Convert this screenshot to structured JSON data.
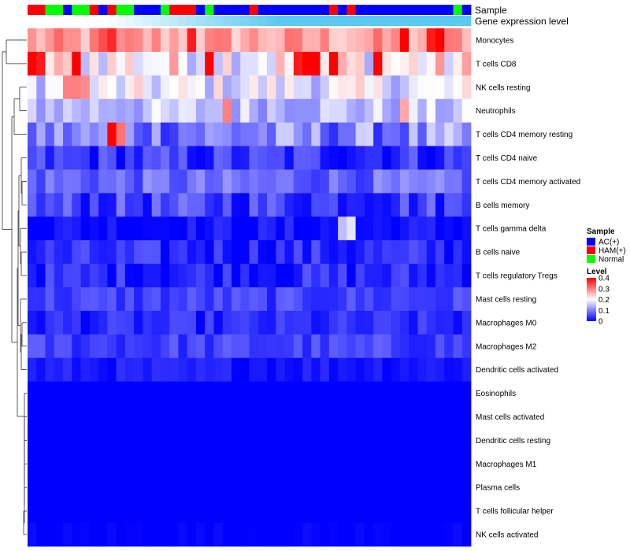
{
  "chart_data": {
    "type": "heatmap",
    "title": "",
    "annotation_labels": {
      "sample": "Sample",
      "gene_expression": "Gene expression level"
    },
    "sample_groups": [
      "HAM(+)",
      "HAM(+)",
      "Normal",
      "Normal",
      "AC(+)",
      "Normal",
      "Normal",
      "HAM(+)",
      "AC(+)",
      "HAM(+)",
      "Normal",
      "Normal",
      "AC(+)",
      "AC(+)",
      "AC(+)",
      "Normal",
      "HAM(+)",
      "HAM(+)",
      "HAM(+)",
      "AC(+)",
      "Normal",
      "AC(+)",
      "AC(+)",
      "AC(+)",
      "AC(+)",
      "HAM(+)",
      "AC(+)",
      "AC(+)",
      "AC(+)",
      "AC(+)",
      "AC(+)",
      "AC(+)",
      "AC(+)",
      "AC(+)",
      "HAM(+)",
      "AC(+)",
      "HAM(+)",
      "AC(+)",
      "AC(+)",
      "AC(+)",
      "AC(+)",
      "AC(+)",
      "AC(+)",
      "AC(+)",
      "AC(+)",
      "AC(+)",
      "AC(+)",
      "AC(+)",
      "Normal",
      "AC(+)"
    ],
    "sample_legend": {
      "title": "Sample",
      "entries": [
        {
          "label": "AC(+)",
          "color": "#0000ff"
        },
        {
          "label": "HAM(+)",
          "color": "#ff0000"
        },
        {
          "label": "Normal",
          "color": "#00ff00"
        }
      ]
    },
    "gene_expression_colors": {
      "low": "#ffffff",
      "high": "#5bc8ef"
    },
    "color_scale": {
      "title": "Level",
      "range": [
        0,
        0.4
      ],
      "ticks": [
        0.4,
        0.3,
        0.2,
        0.1,
        0
      ],
      "tick_labels": [
        "0.4",
        "0.3",
        "0.2",
        "0.1",
        "0"
      ],
      "colors": {
        "low": "#0000ff",
        "mid": "#ffffff",
        "high": "#ff0000",
        "mid_value": 0.2
      }
    },
    "rows": [
      {
        "name": "Monocytes",
        "base": 0.27,
        "spread": 0.05,
        "hot": [
          [
            8,
            0.34
          ],
          [
            9,
            0.37
          ],
          [
            18,
            0.38
          ],
          [
            42,
            0.4
          ],
          [
            45,
            0.38
          ],
          [
            46,
            0.4
          ]
        ]
      },
      {
        "name": "T cells CD8",
        "base": 0.21,
        "spread": 0.08,
        "hot": [
          [
            0,
            0.4
          ],
          [
            1,
            0.38
          ],
          [
            5,
            0.4
          ],
          [
            20,
            0.4
          ],
          [
            30,
            0.38
          ],
          [
            31,
            0.4
          ],
          [
            32,
            0.4
          ],
          [
            34,
            0.4
          ],
          [
            39,
            0.4
          ]
        ]
      },
      {
        "name": "NK cells resting",
        "base": 0.18,
        "spread": 0.06,
        "hot": [
          [
            4,
            0.3
          ],
          [
            5,
            0.3
          ],
          [
            6,
            0.29
          ]
        ]
      },
      {
        "name": "Neutrophils",
        "base": 0.15,
        "spread": 0.05,
        "hot": [
          [
            22,
            0.3
          ],
          [
            42,
            0.27
          ]
        ]
      },
      {
        "name": "T cells CD4 memory resting",
        "base": 0.1,
        "spread": 0.07,
        "hot": [
          [
            9,
            0.4
          ],
          [
            10,
            0.31
          ]
        ]
      },
      {
        "name": "T cells CD4 naive",
        "base": 0.04,
        "spread": 0.05
      },
      {
        "name": "T cells CD4 memory activated",
        "base": 0.08,
        "spread": 0.04
      },
      {
        "name": "B cells memory",
        "base": 0.05,
        "spread": 0.05
      },
      {
        "name": "T cells gamma delta",
        "base": 0.01,
        "spread": 0.03,
        "hot": [
          [
            35,
            0.15
          ],
          [
            36,
            0.18
          ]
        ]
      },
      {
        "name": "B cells naive",
        "base": 0.03,
        "spread": 0.04
      },
      {
        "name": "T cells regulatory  Tregs",
        "base": 0.03,
        "spread": 0.04
      },
      {
        "name": "Mast cells resting",
        "base": 0.05,
        "spread": 0.03
      },
      {
        "name": "Macrophages M0",
        "base": 0.03,
        "spread": 0.03
      },
      {
        "name": "Macrophages M2",
        "base": 0.05,
        "spread": 0.03
      },
      {
        "name": "Dendritic cells activated",
        "base": 0.02,
        "spread": 0.02
      },
      {
        "name": "Eosinophils",
        "base": 0.0,
        "spread": 0.0
      },
      {
        "name": "Mast cells activated",
        "base": 0.0,
        "spread": 0.0
      },
      {
        "name": "Dendritic cells resting",
        "base": 0.0,
        "spread": 0.0
      },
      {
        "name": "Macrophages M1",
        "base": 0.0,
        "spread": 0.0
      },
      {
        "name": "Plasma cells",
        "base": 0.0,
        "spread": 0.0
      },
      {
        "name": "T cells follicular helper",
        "base": 0.0,
        "spread": 0.0
      },
      {
        "name": "NK cells activated",
        "base": 0.0,
        "spread": 0.01
      }
    ]
  }
}
